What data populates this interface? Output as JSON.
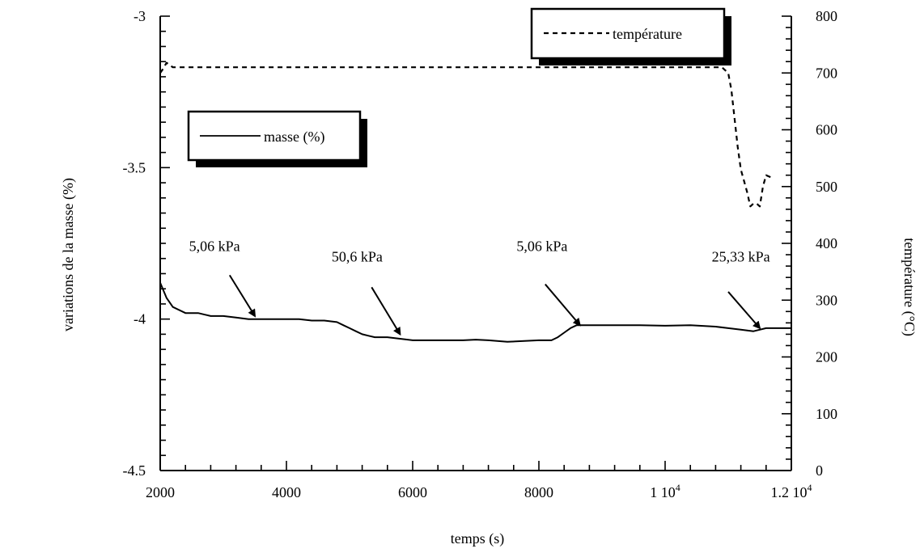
{
  "chart_data": {
    "type": "line",
    "title": "",
    "xlabel": "temps (s)",
    "ylabel_left": "variations de la masse (%)",
    "ylabel_right": "température (°C)",
    "xlim": [
      2000,
      12000
    ],
    "ylim_left": [
      -4.5,
      -3
    ],
    "ylim_right": [
      0,
      800
    ],
    "x_ticks": [
      {
        "value": 2000,
        "label": "2000",
        "sup": ""
      },
      {
        "value": 4000,
        "label": "4000",
        "sup": ""
      },
      {
        "value": 6000,
        "label": "6000",
        "sup": ""
      },
      {
        "value": 8000,
        "label": "8000",
        "sup": ""
      },
      {
        "value": 10000,
        "label": "1 10",
        "sup": "4"
      },
      {
        "value": 12000,
        "label": "1.2 10",
        "sup": "4"
      }
    ],
    "y_left_ticks": [
      {
        "value": -3,
        "label": "-3"
      },
      {
        "value": -3.5,
        "label": "-3.5"
      },
      {
        "value": -4,
        "label": "-4"
      },
      {
        "value": -4.5,
        "label": "-4.5"
      }
    ],
    "y_right_ticks": [
      {
        "value": 0,
        "label": "0"
      },
      {
        "value": 100,
        "label": "100"
      },
      {
        "value": 200,
        "label": "200"
      },
      {
        "value": 300,
        "label": "300"
      },
      {
        "value": 400,
        "label": "400"
      },
      {
        "value": 500,
        "label": "500"
      },
      {
        "value": 600,
        "label": "600"
      },
      {
        "value": 700,
        "label": "700"
      },
      {
        "value": 800,
        "label": "800"
      }
    ],
    "series": [
      {
        "name": "masse (%)",
        "axis": "left",
        "style": "solid",
        "color": "#000000",
        "x": [
          2000,
          2100,
          2200,
          2400,
          2600,
          2800,
          3000,
          3200,
          3400,
          3600,
          3800,
          4000,
          4200,
          4400,
          4600,
          4800,
          4900,
          5000,
          5100,
          5200,
          5300,
          5400,
          5600,
          5800,
          6000,
          6400,
          6800,
          7000,
          7200,
          7500,
          7800,
          8000,
          8200,
          8300,
          8400,
          8500,
          8600,
          8800,
          9200,
          9600,
          10000,
          10400,
          10800,
          11000,
          11200,
          11400,
          11600,
          11800,
          12000
        ],
        "y": [
          -3.88,
          -3.93,
          -3.96,
          -3.98,
          -3.98,
          -3.99,
          -3.99,
          -3.995,
          -4.0,
          -4.0,
          -4.0,
          -4.0,
          -4.0,
          -4.005,
          -4.005,
          -4.01,
          -4.02,
          -4.03,
          -4.04,
          -4.05,
          -4.055,
          -4.06,
          -4.06,
          -4.065,
          -4.07,
          -4.07,
          -4.07,
          -4.068,
          -4.07,
          -4.075,
          -4.072,
          -4.07,
          -4.07,
          -4.06,
          -4.045,
          -4.03,
          -4.02,
          -4.02,
          -4.02,
          -4.02,
          -4.022,
          -4.02,
          -4.025,
          -4.03,
          -4.035,
          -4.04,
          -4.03,
          -4.03,
          -4.03
        ]
      },
      {
        "name": "température",
        "axis": "right",
        "style": "dashed",
        "color": "#000000",
        "x": [
          2000,
          2050,
          2100,
          2200,
          4000,
          6000,
          8000,
          10000,
          10900,
          11000,
          11050,
          11100,
          11150,
          11200,
          11250,
          11300,
          11350,
          11400,
          11450,
          11500,
          11550,
          11600,
          11700
        ],
        "y": [
          700,
          708,
          718,
          710,
          710,
          710,
          710,
          710,
          710,
          700,
          670,
          620,
          570,
          530,
          510,
          490,
          465,
          470,
          470,
          465,
          500,
          520,
          515
        ]
      }
    ],
    "annotations": [
      {
        "text": "5,06 kPa",
        "text_x": 2860,
        "text_y": -3.775,
        "arrow_from_x": 3100,
        "arrow_from_y": -3.855,
        "arrow_to_x": 3500,
        "arrow_to_y": -3.99
      },
      {
        "text": "50,6 kPa",
        "text_x": 5120,
        "text_y": -3.81,
        "arrow_from_x": 5350,
        "arrow_from_y": -3.895,
        "arrow_to_x": 5800,
        "arrow_to_y": -4.05
      },
      {
        "text": "5,06 kPa",
        "text_x": 8050,
        "text_y": -3.775,
        "arrow_from_x": 8100,
        "arrow_from_y": -3.885,
        "arrow_to_x": 8650,
        "arrow_to_y": -4.02
      },
      {
        "text": "25,33 kPa",
        "text_x": 11200,
        "text_y": -3.81,
        "arrow_from_x": 11000,
        "arrow_from_y": -3.91,
        "arrow_to_x": 11500,
        "arrow_to_y": -4.03
      }
    ],
    "legends": [
      {
        "label": "masse (%)",
        "style": "solid",
        "position": "upper-left"
      },
      {
        "label": "température",
        "style": "dashed",
        "position": "top-right"
      }
    ]
  }
}
